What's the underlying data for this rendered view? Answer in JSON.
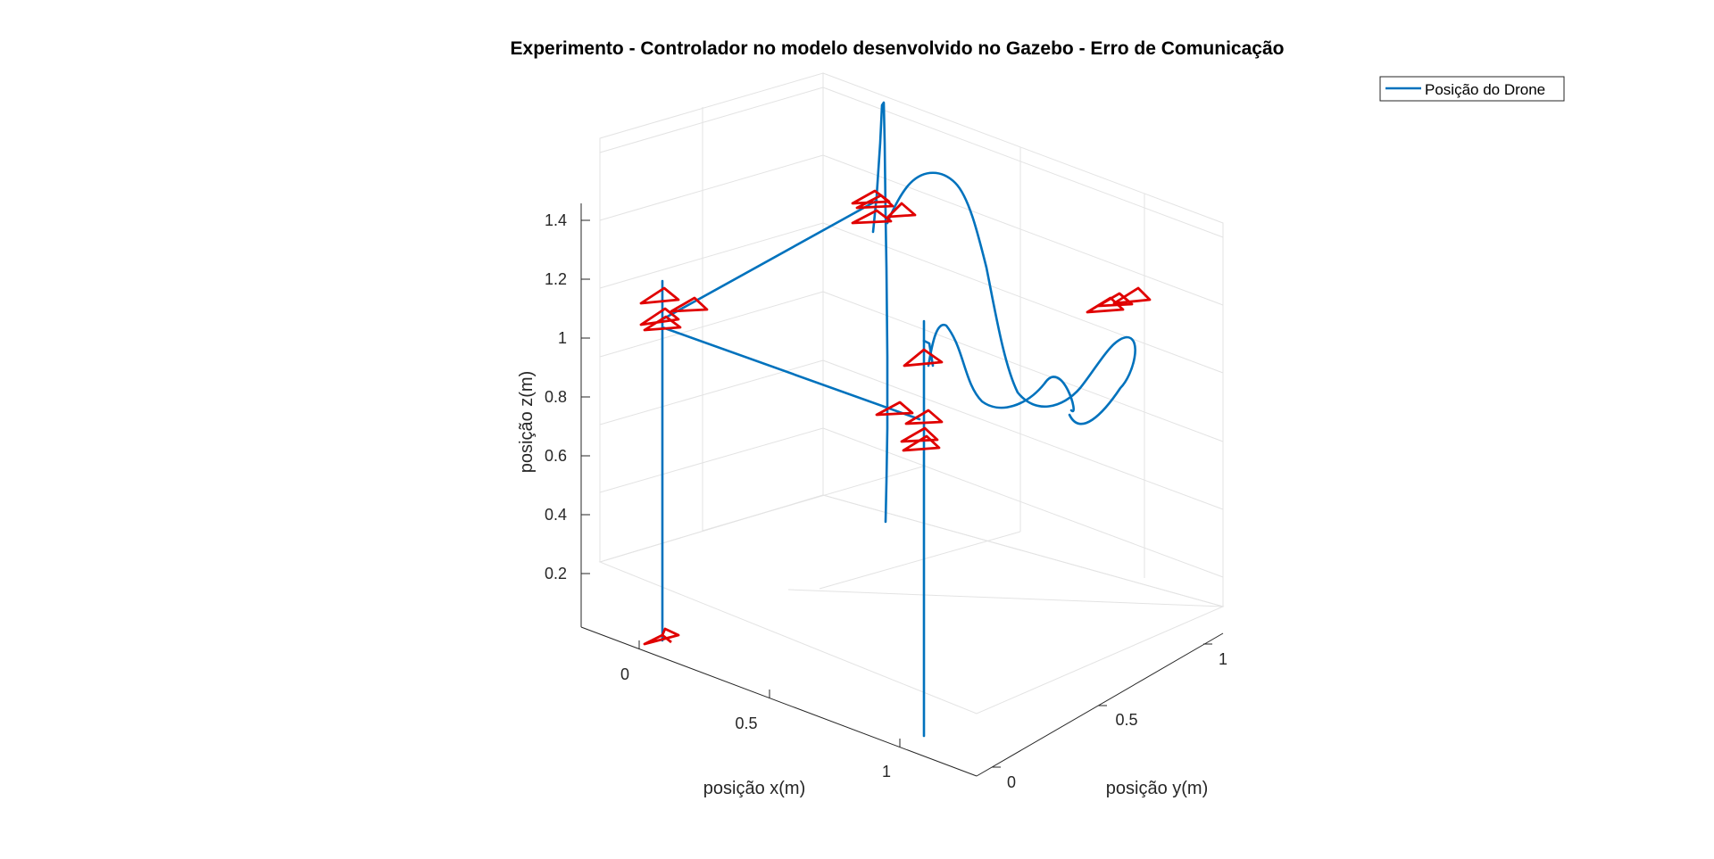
{
  "chart_data": {
    "type": "line3d",
    "title": "Experimento - Controlador no modelo desenvolvido no Gazebo - Erro de Comunicação",
    "xlabel": "posição x(m)",
    "ylabel": "posição y(m)",
    "zlabel": "posição z(m)",
    "xticks": [
      "0",
      "0.5",
      "1"
    ],
    "yticks": [
      "0",
      "0.5",
      "1"
    ],
    "zticks": [
      "0.2",
      "0.4",
      "0.6",
      "0.8",
      "1",
      "1.2",
      "1.4"
    ],
    "legend": {
      "entries": [
        "Posição do Drone"
      ],
      "position": "top-right"
    },
    "grid": true,
    "colors": {
      "path": "#0072bd",
      "drone_markers": "#e00000",
      "grid": "#e3e3e3",
      "axis": "#262626"
    },
    "series": [
      {
        "name": "Posição do Drone",
        "description": "3D drone trajectory with red triangular drone markers at waypoints"
      }
    ]
  }
}
